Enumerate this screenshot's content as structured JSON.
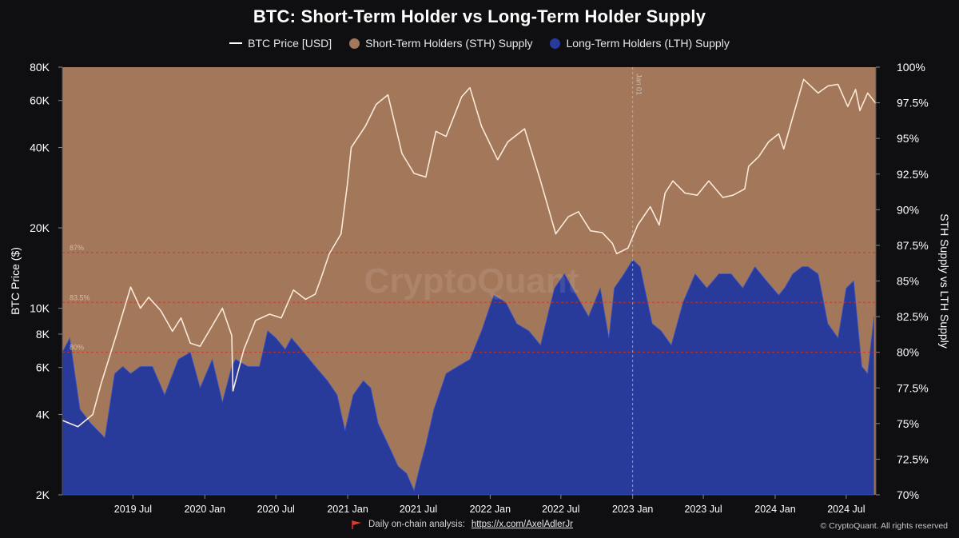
{
  "title": "BTC: Short-Term Holder vs Long-Term Holder Supply",
  "legend": [
    {
      "label": "BTC Price [USD]",
      "color": "#ffffff",
      "marker": "line"
    },
    {
      "label": "Short-Term Holders (STH) Supply",
      "color": "#a2775a",
      "marker": "dot"
    },
    {
      "label": "Long-Term Holders (LTH) Supply",
      "color": "#283a9a",
      "marker": "dot"
    }
  ],
  "watermark": "CryptoQuant",
  "footer": {
    "text": "Daily on-chain analysis:",
    "link": "https://x.com/AxelAdlerJr",
    "copyright": "© CryptoQuant. All rights reserved"
  },
  "chart_data": {
    "type": "area",
    "x_range": [
      "2019-01-01",
      "2024-09-15"
    ],
    "x_tick_labels": [
      "2019 Jul",
      "2020 Jan",
      "2020 Jul",
      "2021 Jan",
      "2021 Jul",
      "2022 Jan",
      "2022 Jul",
      "2023 Jan",
      "2023 Jul",
      "2024 Jan",
      "2024 Jul"
    ],
    "y_left": {
      "label": "BTC Price ($)",
      "scale": "log",
      "range": [
        2000,
        80000
      ],
      "tick_values": [
        2000,
        4000,
        6000,
        8000,
        10000,
        20000,
        40000,
        60000,
        80000
      ],
      "tick_labels": [
        "2K",
        "4K",
        "6K",
        "8K",
        "10K",
        "20K",
        "40K",
        "60K",
        "80K"
      ]
    },
    "y_right": {
      "label": "STH Supply vs LTH Supply",
      "scale": "linear",
      "range": [
        70,
        100
      ],
      "tick_values": [
        70,
        72.5,
        75,
        77.5,
        80,
        82.5,
        85,
        87.5,
        90,
        92.5,
        95,
        97.5,
        100
      ],
      "tick_labels": [
        "70%",
        "72.5%",
        "75%",
        "77.5%",
        "80%",
        "82.5%",
        "85%",
        "87.5%",
        "90%",
        "92.5%",
        "95%",
        "97.5%",
        "100%"
      ]
    },
    "reference_lines": [
      {
        "value": 87,
        "label": "87%"
      },
      {
        "value": 83.5,
        "label": "83.5%"
      },
      {
        "value": 80,
        "label": "80%"
      }
    ],
    "vertical_marker": {
      "x": "2023-01-01",
      "label": "Jan 01"
    },
    "series": [
      {
        "name": "Long-Term Holders (LTH) Supply",
        "axis": "right",
        "color": "#283a9a",
        "x": [
          "2019-01-01",
          "2019-01-20",
          "2019-02-15",
          "2019-03-15",
          "2019-04-20",
          "2019-05-15",
          "2019-06-05",
          "2019-06-25",
          "2019-07-20",
          "2019-08-20",
          "2019-09-20",
          "2019-10-25",
          "2019-11-25",
          "2019-12-20",
          "2020-01-20",
          "2020-02-15",
          "2020-03-10",
          "2020-03-20",
          "2020-04-20",
          "2020-05-20",
          "2020-06-10",
          "2020-07-01",
          "2020-07-25",
          "2020-08-10",
          "2020-09-10",
          "2020-10-10",
          "2020-11-10",
          "2020-12-05",
          "2020-12-25",
          "2021-01-15",
          "2021-02-10",
          "2021-03-01",
          "2021-03-20",
          "2021-04-15",
          "2021-05-10",
          "2021-06-01",
          "2021-06-20",
          "2021-07-05",
          "2021-07-20",
          "2021-08-10",
          "2021-09-10",
          "2021-10-10",
          "2021-11-10",
          "2021-12-10",
          "2022-01-10",
          "2022-02-10",
          "2022-03-10",
          "2022-04-10",
          "2022-05-10",
          "2022-06-01",
          "2022-06-15",
          "2022-07-10",
          "2022-08-10",
          "2022-09-10",
          "2022-10-10",
          "2022-11-01",
          "2022-11-15",
          "2022-12-10",
          "2023-01-01",
          "2023-01-20",
          "2023-02-20",
          "2023-03-15",
          "2023-04-10",
          "2023-05-10",
          "2023-06-10",
          "2023-07-10",
          "2023-08-10",
          "2023-09-10",
          "2023-10-10",
          "2023-11-10",
          "2023-12-10",
          "2024-01-10",
          "2024-01-25",
          "2024-02-15",
          "2024-03-10",
          "2024-03-25",
          "2024-04-20",
          "2024-05-15",
          "2024-06-10",
          "2024-07-01",
          "2024-07-20",
          "2024-08-10",
          "2024-08-25",
          "2024-09-10"
        ],
        "values": [
          80,
          81,
          76,
          75,
          74,
          78.5,
          79,
          78.5,
          79,
          79,
          77,
          79.5,
          80,
          77.5,
          79.5,
          76.5,
          79,
          79.5,
          79,
          79,
          81.5,
          81,
          80.2,
          81,
          80,
          79,
          78,
          77,
          74.5,
          77,
          78,
          77.5,
          75,
          73.5,
          72,
          71.5,
          70.3,
          72,
          73.5,
          76,
          78.5,
          79,
          79.5,
          81.5,
          84,
          83.5,
          82,
          81.5,
          80.5,
          83,
          84.5,
          85.5,
          84,
          82.5,
          84.5,
          81,
          84.5,
          85.5,
          86.5,
          86,
          82,
          81.5,
          80.5,
          83.5,
          85.5,
          84.5,
          85.5,
          85.5,
          84.5,
          86,
          85,
          84,
          84.5,
          85.5,
          86,
          86,
          85.5,
          82,
          81,
          84.5,
          85,
          79,
          78.5,
          82.5
        ]
      },
      {
        "name": "BTC Price [USD]",
        "axis": "left",
        "color": "#ffffff",
        "x": [
          "2019-01-01",
          "2019-02-10",
          "2019-03-20",
          "2019-04-10",
          "2019-05-20",
          "2019-06-25",
          "2019-07-20",
          "2019-08-10",
          "2019-09-10",
          "2019-10-10",
          "2019-11-01",
          "2019-11-25",
          "2019-12-20",
          "2020-01-20",
          "2020-02-15",
          "2020-03-10",
          "2020-03-13",
          "2020-04-10",
          "2020-05-10",
          "2020-06-15",
          "2020-07-15",
          "2020-08-15",
          "2020-09-15",
          "2020-10-10",
          "2020-10-25",
          "2020-11-15",
          "2020-12-15",
          "2020-12-31",
          "2021-01-10",
          "2021-02-15",
          "2021-03-15",
          "2021-04-14",
          "2021-05-20",
          "2021-06-20",
          "2021-07-20",
          "2021-08-15",
          "2021-09-10",
          "2021-10-20",
          "2021-11-10",
          "2021-12-10",
          "2022-01-20",
          "2022-02-15",
          "2022-03-30",
          "2022-05-10",
          "2022-06-18",
          "2022-07-20",
          "2022-08-15",
          "2022-09-15",
          "2022-10-15",
          "2022-11-10",
          "2022-11-21",
          "2022-12-20",
          "2023-01-14",
          "2023-02-15",
          "2023-03-10",
          "2023-03-25",
          "2023-04-14",
          "2023-05-15",
          "2023-06-15",
          "2023-07-15",
          "2023-08-20",
          "2023-09-15",
          "2023-10-15",
          "2023-10-25",
          "2023-11-20",
          "2023-12-15",
          "2024-01-10",
          "2024-01-23",
          "2024-02-15",
          "2024-03-14",
          "2024-04-20",
          "2024-05-15",
          "2024-06-10",
          "2024-07-05",
          "2024-07-25",
          "2024-08-05",
          "2024-08-25",
          "2024-09-15"
        ],
        "values": [
          3800,
          3600,
          4000,
          5200,
          8000,
          12000,
          10000,
          11000,
          9800,
          8200,
          9200,
          7400,
          7200,
          8600,
          10000,
          7900,
          4900,
          7000,
          9000,
          9500,
          9200,
          11700,
          10800,
          11300,
          13000,
          16000,
          19000,
          29000,
          40000,
          48000,
          58000,
          63000,
          38000,
          32000,
          31000,
          46000,
          44000,
          62000,
          67000,
          48000,
          36000,
          42000,
          47000,
          30000,
          19000,
          22000,
          23000,
          19500,
          19200,
          17500,
          16000,
          16800,
          20500,
          24000,
          20500,
          27000,
          30000,
          27000,
          26500,
          30000,
          26000,
          26500,
          28000,
          34000,
          37000,
          42000,
          45000,
          39500,
          52000,
          72000,
          64000,
          68000,
          69000,
          57000,
          66000,
          55000,
          64000,
          58500
        ]
      }
    ]
  }
}
